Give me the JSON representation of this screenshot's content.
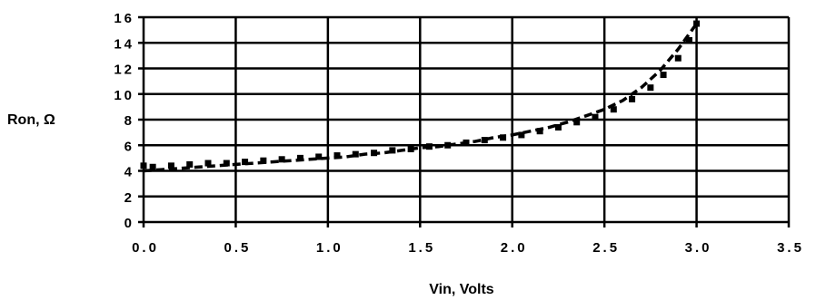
{
  "chart_data": {
    "type": "scatter",
    "title": "",
    "xlabel": "Vin, Volts",
    "ylabel": "Ron, Ω",
    "xlim": [
      0,
      3.5
    ],
    "ylim": [
      0,
      16
    ],
    "grid": true,
    "x_ticks": [
      "0.0",
      "0.5",
      "1.0",
      "1.5",
      "2.0",
      "2.5",
      "3.0",
      "3.5"
    ],
    "y_ticks": [
      "0",
      "2",
      "4",
      "6",
      "8",
      "10",
      "12",
      "14",
      "16"
    ],
    "series": [
      {
        "style": "square-markers",
        "color": "#000000",
        "x": [
          0.0,
          0.05,
          0.15,
          0.25,
          0.35,
          0.45,
          0.55,
          0.65,
          0.75,
          0.85,
          0.95,
          1.05,
          1.15,
          1.25,
          1.35,
          1.45,
          1.55,
          1.65,
          1.75,
          1.85,
          1.95,
          2.05,
          2.15,
          2.25,
          2.35,
          2.45,
          2.55,
          2.65,
          2.75,
          2.82,
          2.9,
          2.96,
          3.0
        ],
        "y": [
          4.4,
          4.3,
          4.4,
          4.5,
          4.6,
          4.6,
          4.7,
          4.8,
          4.9,
          5.0,
          5.1,
          5.2,
          5.3,
          5.4,
          5.6,
          5.7,
          5.9,
          6.0,
          6.2,
          6.4,
          6.6,
          6.8,
          7.1,
          7.4,
          7.8,
          8.2,
          8.8,
          9.6,
          10.5,
          11.5,
          12.8,
          14.2,
          15.5
        ]
      },
      {
        "style": "dashed-fit",
        "color": "#000000",
        "x": [
          0.0,
          0.1,
          0.2,
          0.3,
          0.4,
          0.5,
          0.6,
          0.7,
          0.8,
          0.9,
          1.0,
          1.1,
          1.2,
          1.3,
          1.4,
          1.5,
          1.6,
          1.7,
          1.8,
          1.9,
          2.0,
          2.1,
          2.2,
          2.3,
          2.4,
          2.5,
          2.6,
          2.7,
          2.8,
          2.9,
          3.0
        ],
        "y": [
          4.0,
          4.1,
          4.2,
          4.3,
          4.4,
          4.5,
          4.6,
          4.7,
          4.8,
          4.9,
          5.0,
          5.1,
          5.3,
          5.4,
          5.6,
          5.8,
          5.9,
          6.1,
          6.3,
          6.6,
          6.8,
          7.1,
          7.4,
          7.8,
          8.3,
          8.8,
          9.5,
          10.5,
          11.8,
          13.5,
          15.5
        ]
      }
    ]
  }
}
